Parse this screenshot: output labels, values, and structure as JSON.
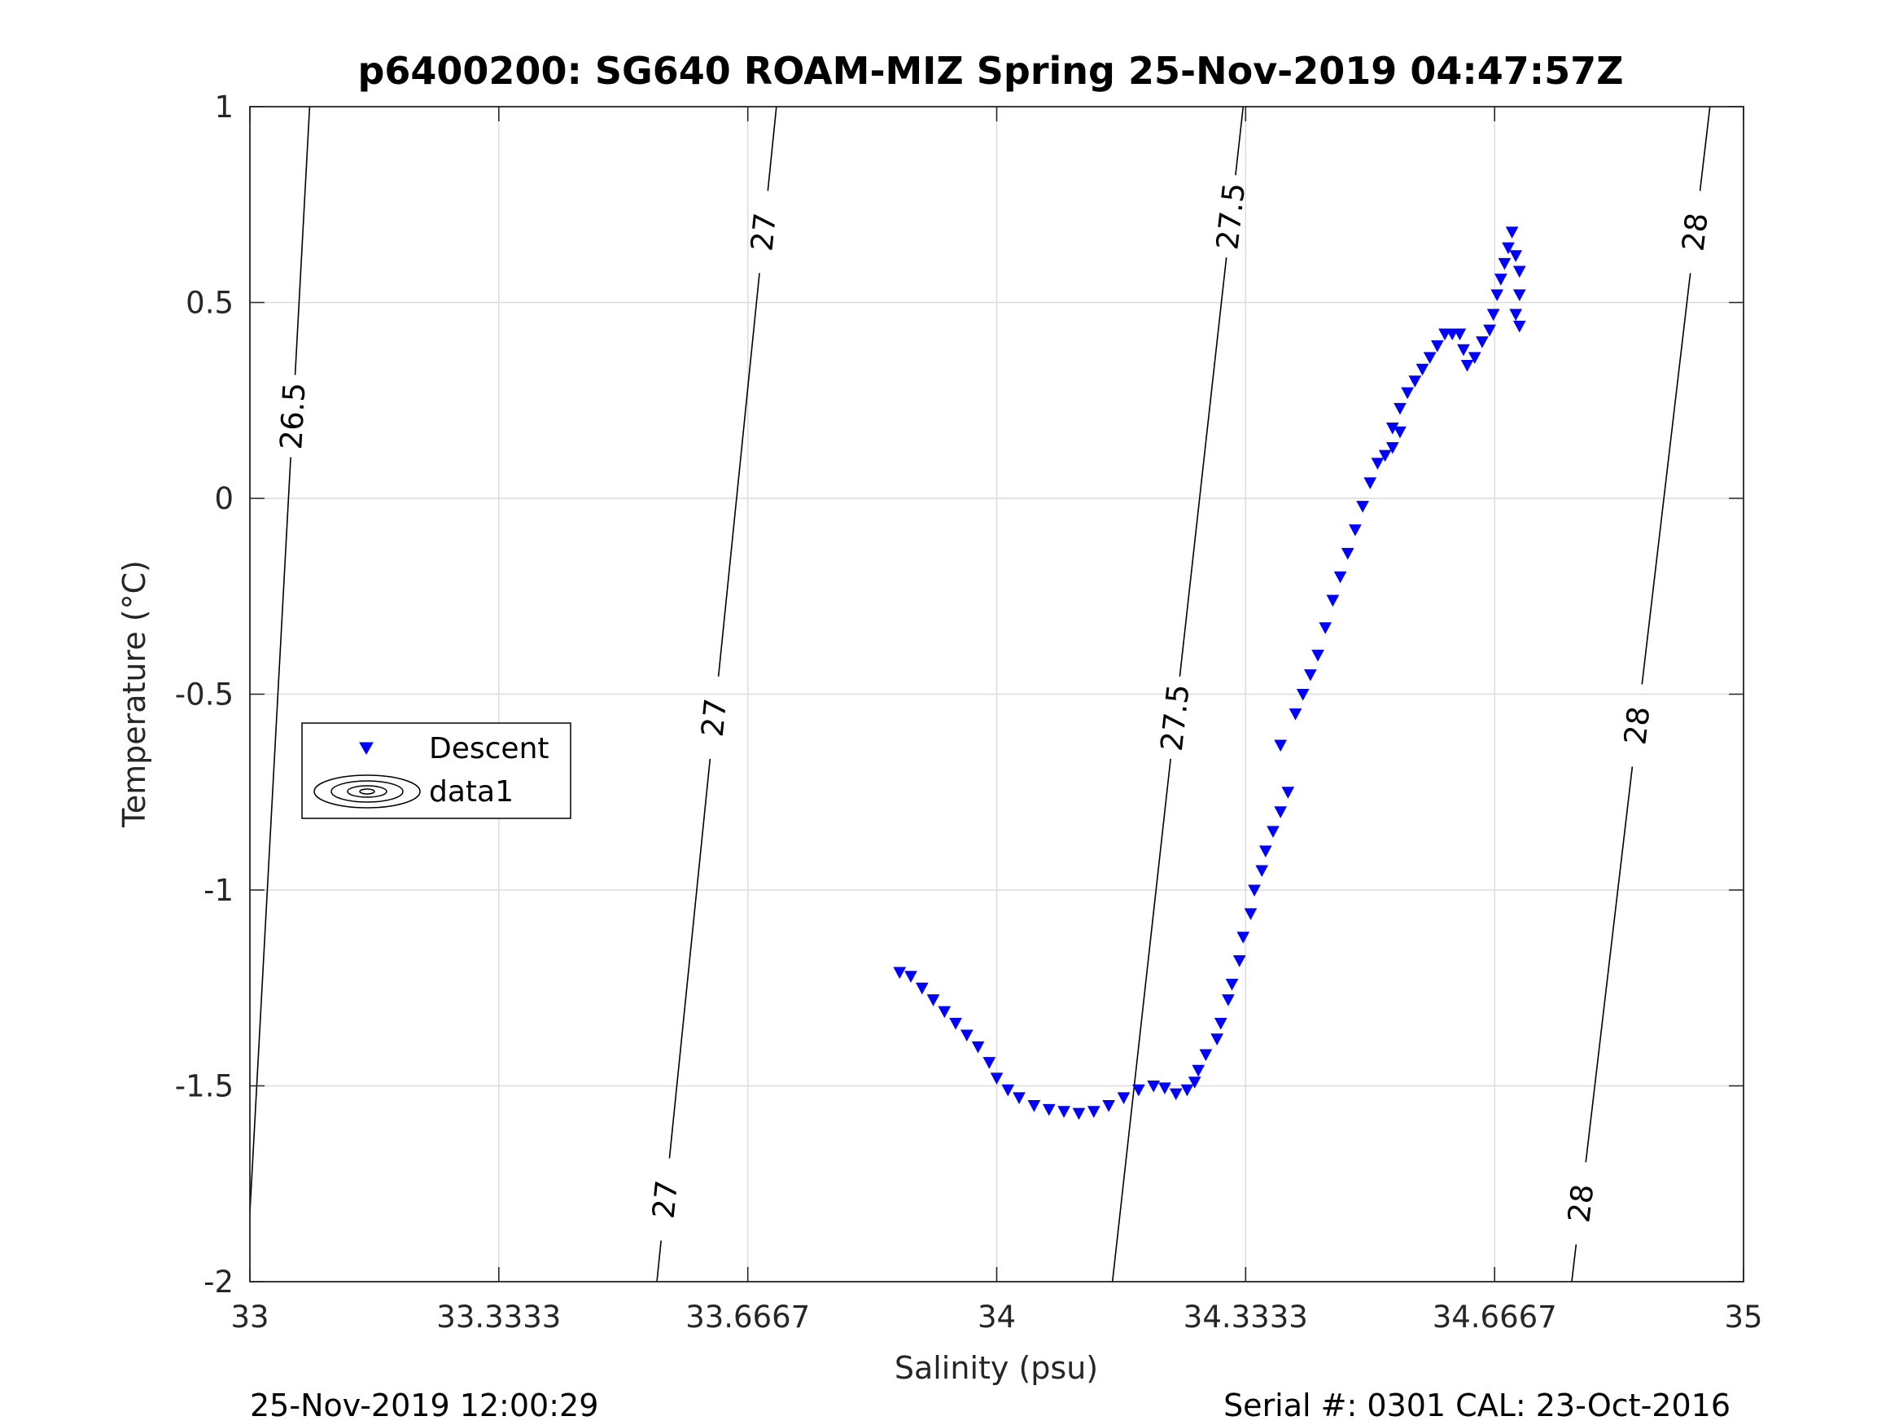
{
  "chart_data": {
    "type": "scatter",
    "title": "p6400200: SG640 ROAM-MIZ Spring 25-Nov-2019 04:47:57Z",
    "xlabel": "Salinity (psu)",
    "ylabel": "Temperature (°C)",
    "xlim": [
      33,
      35
    ],
    "ylim": [
      -2,
      1
    ],
    "xticks": [
      33,
      33.3333,
      33.6667,
      34,
      34.3333,
      34.6667,
      35
    ],
    "xtick_labels": [
      "33",
      "33.3333",
      "33.6667",
      "34",
      "34.3333",
      "34.6667",
      "35"
    ],
    "yticks": [
      1,
      0.5,
      0,
      -0.5,
      -1,
      -1.5,
      -2
    ],
    "ytick_labels": [
      "1",
      "0.5",
      "0",
      "-0.5",
      "-1",
      "-1.5",
      "-2"
    ],
    "grid": true,
    "legend": {
      "placement": "middle-left",
      "entries": [
        "Descent",
        "data1"
      ]
    },
    "series": [
      {
        "name": "Descent",
        "marker": "downward-triangle",
        "color": "#0000ff",
        "points": [
          [
            33.87,
            -1.21
          ],
          [
            33.885,
            -1.22
          ],
          [
            33.9,
            -1.25
          ],
          [
            33.915,
            -1.28
          ],
          [
            33.93,
            -1.31
          ],
          [
            33.945,
            -1.34
          ],
          [
            33.96,
            -1.37
          ],
          [
            33.975,
            -1.4
          ],
          [
            33.99,
            -1.44
          ],
          [
            34.0,
            -1.48
          ],
          [
            34.015,
            -1.51
          ],
          [
            34.03,
            -1.53
          ],
          [
            34.05,
            -1.55
          ],
          [
            34.07,
            -1.56
          ],
          [
            34.09,
            -1.565
          ],
          [
            34.11,
            -1.57
          ],
          [
            34.13,
            -1.565
          ],
          [
            34.15,
            -1.55
          ],
          [
            34.17,
            -1.53
          ],
          [
            34.19,
            -1.51
          ],
          [
            34.21,
            -1.5
          ],
          [
            34.225,
            -1.505
          ],
          [
            34.24,
            -1.52
          ],
          [
            34.255,
            -1.51
          ],
          [
            34.265,
            -1.49
          ],
          [
            34.27,
            -1.46
          ],
          [
            34.28,
            -1.42
          ],
          [
            34.295,
            -1.38
          ],
          [
            34.3,
            -1.34
          ],
          [
            34.31,
            -1.28
          ],
          [
            34.315,
            -1.24
          ],
          [
            34.325,
            -1.18
          ],
          [
            34.33,
            -1.12
          ],
          [
            34.34,
            -1.06
          ],
          [
            34.345,
            -1.0
          ],
          [
            34.355,
            -0.95
          ],
          [
            34.36,
            -0.9
          ],
          [
            34.37,
            -0.85
          ],
          [
            34.38,
            -0.8
          ],
          [
            34.39,
            -0.75
          ],
          [
            34.38,
            -0.63
          ],
          [
            34.4,
            -0.55
          ],
          [
            34.41,
            -0.5
          ],
          [
            34.42,
            -0.45
          ],
          [
            34.43,
            -0.4
          ],
          [
            34.44,
            -0.33
          ],
          [
            34.45,
            -0.26
          ],
          [
            34.46,
            -0.2
          ],
          [
            34.47,
            -0.14
          ],
          [
            34.48,
            -0.08
          ],
          [
            34.49,
            -0.02
          ],
          [
            34.5,
            0.04
          ],
          [
            34.51,
            0.09
          ],
          [
            34.52,
            0.11
          ],
          [
            34.53,
            0.13
          ],
          [
            34.54,
            0.17
          ],
          [
            34.53,
            0.18
          ],
          [
            34.54,
            0.23
          ],
          [
            34.55,
            0.27
          ],
          [
            34.56,
            0.3
          ],
          [
            34.57,
            0.33
          ],
          [
            34.58,
            0.36
          ],
          [
            34.59,
            0.39
          ],
          [
            34.6,
            0.42
          ],
          [
            34.61,
            0.42
          ],
          [
            34.62,
            0.42
          ],
          [
            34.625,
            0.38
          ],
          [
            34.63,
            0.34
          ],
          [
            34.64,
            0.36
          ],
          [
            34.65,
            0.4
          ],
          [
            34.66,
            0.43
          ],
          [
            34.665,
            0.47
          ],
          [
            34.67,
            0.52
          ],
          [
            34.675,
            0.56
          ],
          [
            34.68,
            0.6
          ],
          [
            34.685,
            0.64
          ],
          [
            34.69,
            0.68
          ],
          [
            34.695,
            0.62
          ],
          [
            34.7,
            0.58
          ],
          [
            34.7,
            0.52
          ],
          [
            34.695,
            0.47
          ],
          [
            34.7,
            0.44
          ]
        ]
      }
    ],
    "contours": [
      {
        "label": "26.5",
        "s_at_tmax": 33.08,
        "s_at_tmin": 32.995
      },
      {
        "label": "27",
        "s_at_tmax": 33.705,
        "s_at_tmin": 33.545
      },
      {
        "label": "27.5",
        "s_at_tmax": 34.33,
        "s_at_tmin": 34.155
      },
      {
        "label": "28",
        "s_at_tmax": 34.955,
        "s_at_tmin": 34.77
      }
    ],
    "contour_labels": [
      {
        "text": "26.5",
        "t": 0.21
      },
      {
        "text": "27",
        "t": 0.68
      },
      {
        "text": "27",
        "t": -0.56
      },
      {
        "text": "27",
        "t": -1.79
      },
      {
        "text": "27.5",
        "t": 0.72
      },
      {
        "text": "27.5",
        "t": -0.56
      },
      {
        "text": "28",
        "t": 0.68
      },
      {
        "text": "28",
        "t": -0.58
      },
      {
        "text": "28",
        "t": -1.8
      }
    ]
  },
  "footer": {
    "timestamp": "25-Nov-2019 12:00:29",
    "serial": "Serial #: 0301  CAL: 23-Oct-2016"
  }
}
